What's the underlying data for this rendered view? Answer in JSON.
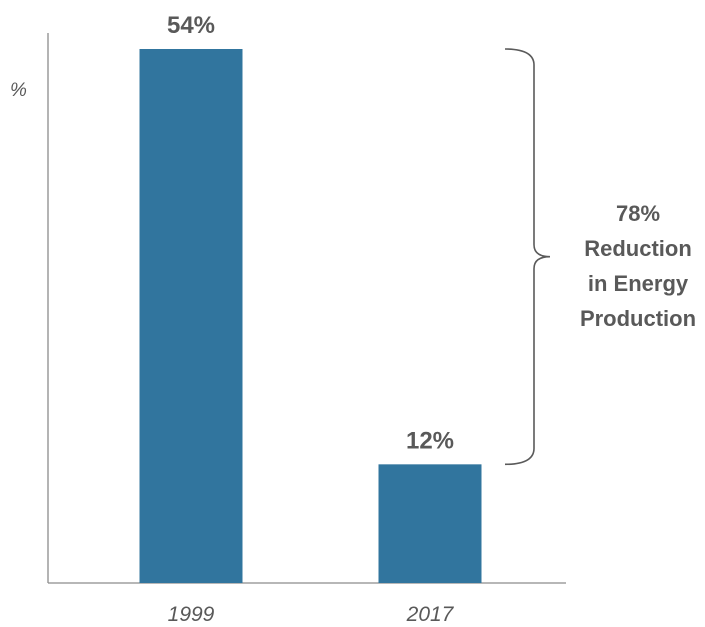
{
  "chart_data": {
    "type": "bar",
    "categories": [
      "1999",
      "2017"
    ],
    "values": [
      54,
      12
    ],
    "data_labels": [
      "54%",
      "12%"
    ],
    "title": "",
    "xlabel": "",
    "ylabel": "%",
    "ylim": [
      0,
      54
    ],
    "grid": false,
    "bar_color": "#31759e",
    "annotation": {
      "lines": [
        "78%",
        "Reduction",
        "in Energy",
        "Production"
      ],
      "spans": [
        "1999",
        "2017"
      ]
    }
  }
}
